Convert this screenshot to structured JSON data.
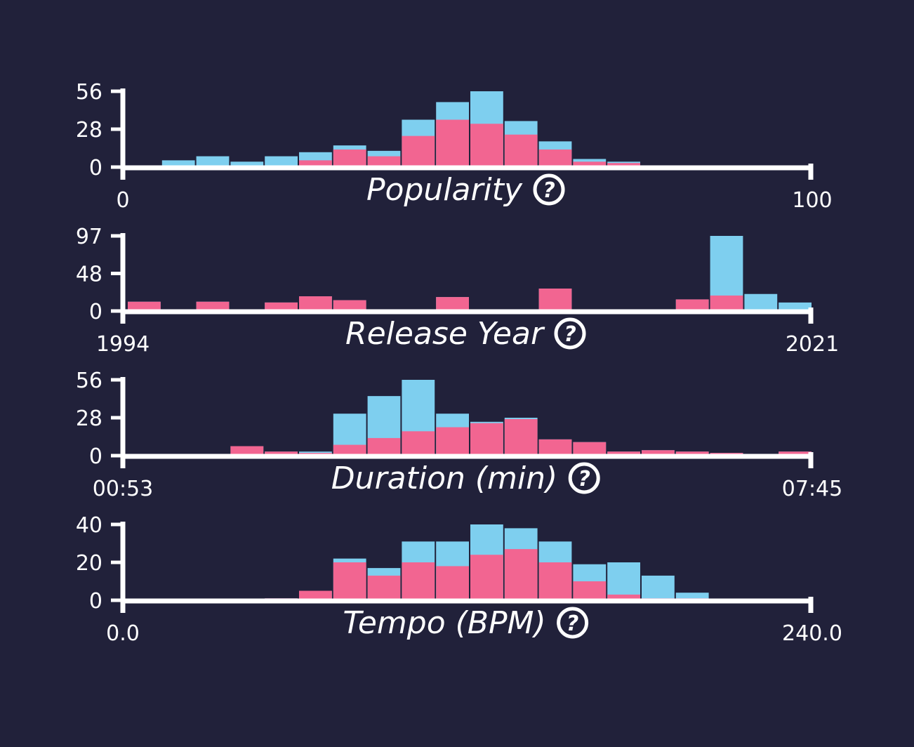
{
  "colors": {
    "background": "#21213a",
    "series_a": "#7ecfef",
    "series_b": "#f26591",
    "axis": "#ffffff",
    "text": "#ffffff"
  },
  "icons": {
    "help": "question-circle-icon",
    "help_glyph": "?"
  },
  "chart_data": [
    {
      "type": "bar",
      "stacked": "overlay",
      "title": "Popularity",
      "xlabel": "Popularity",
      "xlim": [
        0,
        100
      ],
      "x_tick_labels": [
        "0",
        "100"
      ],
      "ylim": [
        0,
        56
      ],
      "y_tick_labels": [
        "56",
        "28",
        "0"
      ],
      "bins": 20,
      "series": [
        {
          "color": "#7ecfef",
          "values": [
            0,
            5,
            8,
            4,
            8,
            11,
            16,
            12,
            35,
            48,
            56,
            34,
            19,
            6,
            4,
            0,
            0,
            0,
            0,
            0
          ]
        },
        {
          "color": "#f26591",
          "values": [
            0,
            0,
            0,
            0,
            0,
            5,
            13,
            8,
            23,
            35,
            32,
            24,
            13,
            4,
            3,
            0,
            1,
            0,
            0,
            0
          ]
        }
      ]
    },
    {
      "type": "bar",
      "stacked": "overlay",
      "title": "Release Year",
      "xlabel": "Release Year",
      "xlim": [
        1994,
        2021
      ],
      "x_tick_labels": [
        "1994",
        "2021"
      ],
      "ylim": [
        0,
        97
      ],
      "y_tick_labels": [
        "97",
        "48",
        "0"
      ],
      "bins": 20,
      "series": [
        {
          "color": "#7ecfef",
          "values": [
            12,
            0,
            12,
            0,
            11,
            19,
            14,
            0,
            0,
            18,
            0,
            0,
            29,
            0,
            0,
            0,
            15,
            97,
            22,
            11
          ]
        },
        {
          "color": "#f26591",
          "values": [
            12,
            0,
            12,
            0,
            11,
            19,
            14,
            0,
            0,
            18,
            0,
            0,
            29,
            0,
            0,
            0,
            15,
            20,
            1,
            0
          ]
        }
      ]
    },
    {
      "type": "bar",
      "stacked": "overlay",
      "title": "Duration (min)",
      "xlabel": "Duration (min)",
      "xlim": [
        "00:53",
        "07:45"
      ],
      "x_tick_labels": [
        "00:53",
        "07:45"
      ],
      "ylim": [
        0,
        56
      ],
      "y_tick_labels": [
        "56",
        "28",
        "0"
      ],
      "bins": 20,
      "series": [
        {
          "color": "#7ecfef",
          "values": [
            1,
            0,
            0,
            7,
            3,
            3,
            31,
            44,
            56,
            31,
            25,
            28,
            12,
            10,
            3,
            4,
            3,
            2,
            1,
            3
          ]
        },
        {
          "color": "#f26591",
          "values": [
            1,
            0,
            0,
            7,
            3,
            2,
            8,
            13,
            18,
            21,
            24,
            27,
            12,
            10,
            3,
            4,
            3,
            2,
            1,
            3
          ]
        }
      ]
    },
    {
      "type": "bar",
      "stacked": "overlay",
      "title": "Tempo (BPM)",
      "xlabel": "Tempo (BPM)",
      "xlim": [
        0.0,
        240.0
      ],
      "x_tick_labels": [
        "0.0",
        "240.0"
      ],
      "ylim": [
        0,
        40
      ],
      "y_tick_labels": [
        "40",
        "20",
        "0"
      ],
      "bins": 20,
      "series": [
        {
          "color": "#7ecfef",
          "values": [
            0,
            0,
            0,
            0,
            1,
            5,
            22,
            17,
            31,
            31,
            40,
            38,
            31,
            19,
            20,
            13,
            4,
            0,
            0,
            0
          ]
        },
        {
          "color": "#f26591",
          "values": [
            0,
            0,
            0,
            0,
            1,
            5,
            20,
            13,
            20,
            18,
            24,
            27,
            20,
            10,
            3,
            1,
            1,
            0,
            0,
            0
          ]
        }
      ]
    }
  ]
}
